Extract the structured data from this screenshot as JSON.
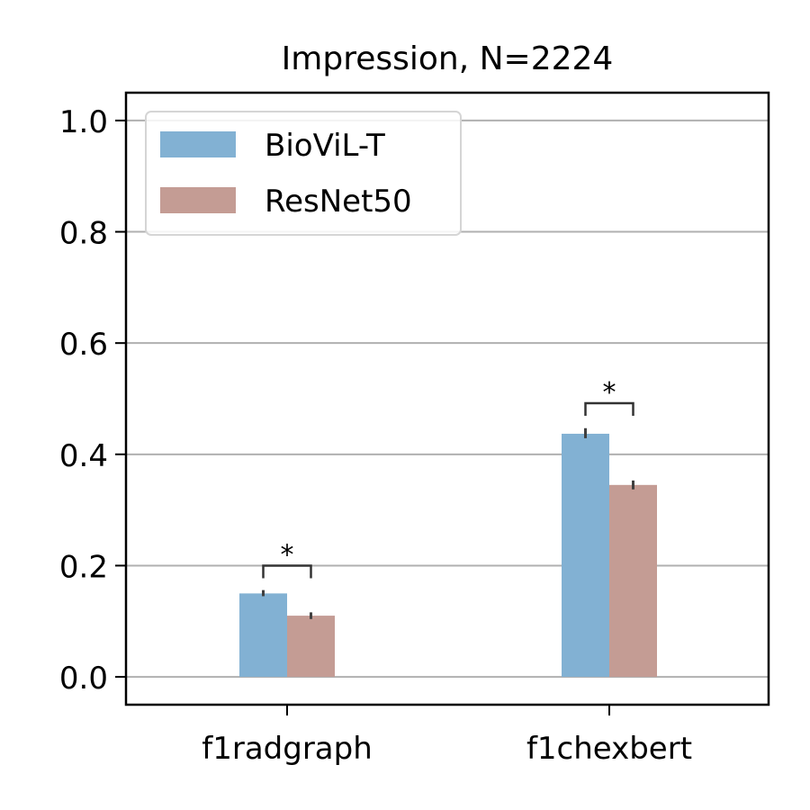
{
  "chart_data": {
    "type": "bar",
    "title": "Impression, N=2224",
    "xlabel": "",
    "ylabel": "",
    "ylim": [
      -0.05,
      1.05
    ],
    "yticks": [
      0.0,
      0.2,
      0.4,
      0.6,
      0.8,
      1.0
    ],
    "ytick_labels": [
      "0.0",
      "0.2",
      "0.4",
      "0.6",
      "0.8",
      "1.0"
    ],
    "grid": "y",
    "legend_position": "top-left",
    "categories": [
      "f1radgraph",
      "f1chexbert"
    ],
    "series": [
      {
        "name": "BioViL-T",
        "color": "#82b1d3",
        "values": [
          0.15,
          0.437
        ],
        "error_low": [
          0.145,
          0.429
        ],
        "error_high": [
          0.156,
          0.447
        ]
      },
      {
        "name": "ResNet50",
        "color": "#c49c94",
        "values": [
          0.11,
          0.345
        ],
        "error_low": [
          0.104,
          0.337
        ],
        "error_high": [
          0.116,
          0.353
        ]
      }
    ],
    "significance": [
      {
        "category": "f1radgraph",
        "label": "*",
        "bracket_y": 0.2
      },
      {
        "category": "f1chexbert",
        "label": "*",
        "bracket_y": 0.492
      }
    ]
  }
}
